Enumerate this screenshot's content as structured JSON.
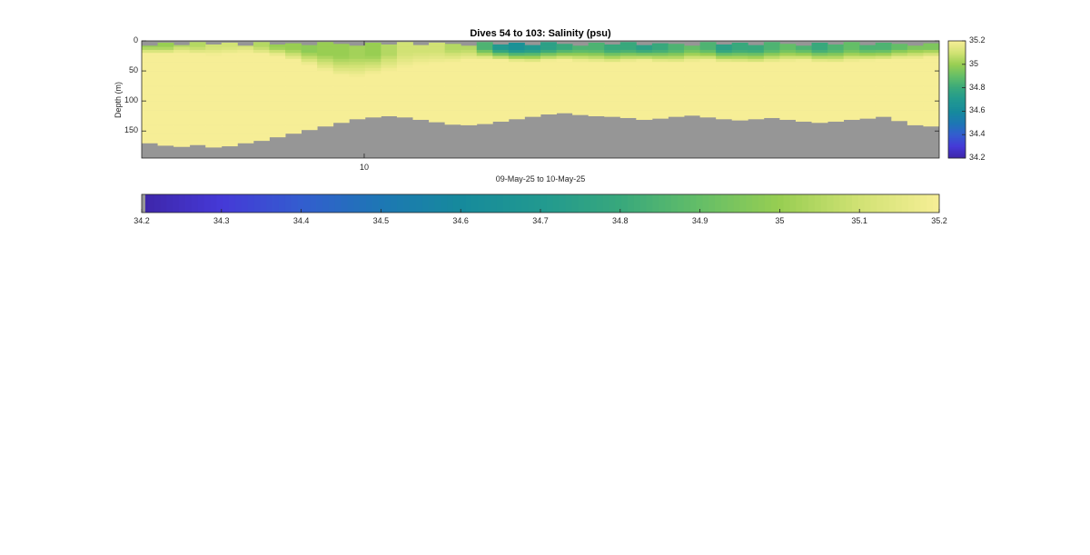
{
  "chart_data": {
    "type": "heatmap",
    "title": "Dives 54 to 103: Salinity (psu)",
    "xlabel": "09-May-25 to 10-May-25",
    "ylabel": "Depth (m)",
    "x_ticks": [
      "10"
    ],
    "y_ticks": [
      "0",
      "50",
      "100",
      "150"
    ],
    "ylim": [
      0,
      195
    ],
    "dives": [
      54,
      103
    ],
    "colorbar_ticks": [
      "34.2",
      "34.4",
      "34.6",
      "34.8",
      "35",
      "35.2"
    ],
    "colorbar_range": [
      34.2,
      35.2
    ],
    "horizontal_colorbar_ticks": [
      "34.2",
      "34.3",
      "34.4",
      "34.5",
      "34.6",
      "34.7",
      "34.8",
      "34.9",
      "35",
      "35.1",
      "35.2"
    ],
    "profile_top_depth_m": [
      8,
      3,
      7,
      2,
      6,
      3,
      8,
      2,
      6,
      4,
      7,
      2,
      5,
      8,
      3,
      6,
      2,
      7,
      3,
      5,
      8,
      2,
      6,
      3,
      7,
      2,
      5,
      8,
      3,
      6,
      2,
      7,
      4,
      5,
      8,
      2,
      6,
      3,
      7,
      2,
      5,
      8,
      3,
      6,
      2,
      7,
      3,
      5,
      8,
      4
    ],
    "profile_bottom_depth_m": [
      170,
      174,
      176,
      173,
      177,
      175,
      170,
      166,
      160,
      154,
      148,
      142,
      136,
      130,
      127,
      125,
      127,
      131,
      135,
      139,
      140,
      138,
      134,
      130,
      126,
      122,
      120,
      123,
      125,
      126,
      128,
      131,
      129,
      126,
      124,
      127,
      130,
      132,
      130,
      128,
      131,
      134,
      136,
      134,
      131,
      129,
      126,
      133,
      140,
      142
    ],
    "surface_salinity_psu": [
      35.0,
      35.0,
      35.05,
      35.05,
      35.1,
      35.1,
      35.1,
      35.05,
      35.0,
      35.0,
      34.98,
      35.0,
      35.0,
      35.02,
      35.0,
      35.05,
      35.1,
      35.1,
      35.1,
      35.05,
      35.05,
      34.85,
      34.7,
      34.65,
      34.7,
      34.75,
      34.8,
      34.85,
      34.85,
      34.8,
      34.8,
      34.75,
      34.8,
      34.85,
      34.9,
      34.85,
      34.75,
      34.8,
      34.8,
      34.85,
      34.9,
      34.85,
      34.8,
      34.85,
      34.9,
      34.85,
      34.85,
      34.9,
      34.95,
      34.95
    ],
    "mixed_layer_depth_m": [
      22,
      22,
      20,
      22,
      24,
      22,
      20,
      22,
      25,
      32,
      40,
      50,
      58,
      60,
      55,
      50,
      45,
      40,
      38,
      35,
      32,
      30,
      32,
      34,
      35,
      33,
      32,
      34,
      35,
      36,
      34,
      33,
      35,
      36,
      34,
      33,
      35,
      36,
      37,
      35,
      34,
      33,
      35,
      36,
      34,
      33,
      32,
      30,
      30,
      28
    ],
    "deep_salinity_psu": 35.2,
    "colors": {
      "nodata": "#969696",
      "background": "#ffffff"
    }
  }
}
